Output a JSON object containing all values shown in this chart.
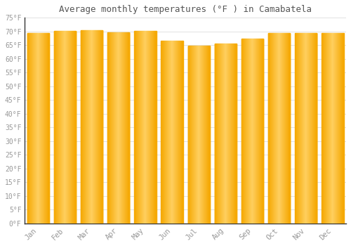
{
  "title": "Average monthly temperatures (°F ) in Camabatela",
  "months": [
    "Jan",
    "Feb",
    "Mar",
    "Apr",
    "May",
    "Jun",
    "Jul",
    "Aug",
    "Sep",
    "Oct",
    "Nov",
    "Dec"
  ],
  "values": [
    69.5,
    70.2,
    70.5,
    69.8,
    70.2,
    66.5,
    64.8,
    65.5,
    67.5,
    69.5,
    69.5,
    69.5
  ],
  "bar_color_center": "#FFD060",
  "bar_color_edge": "#F5A800",
  "background_color": "#FFFFFF",
  "grid_color": "#DDDDDD",
  "text_color": "#999999",
  "title_color": "#555555",
  "ylim": [
    0,
    75
  ],
  "ytick_step": 5,
  "bar_width": 0.82
}
